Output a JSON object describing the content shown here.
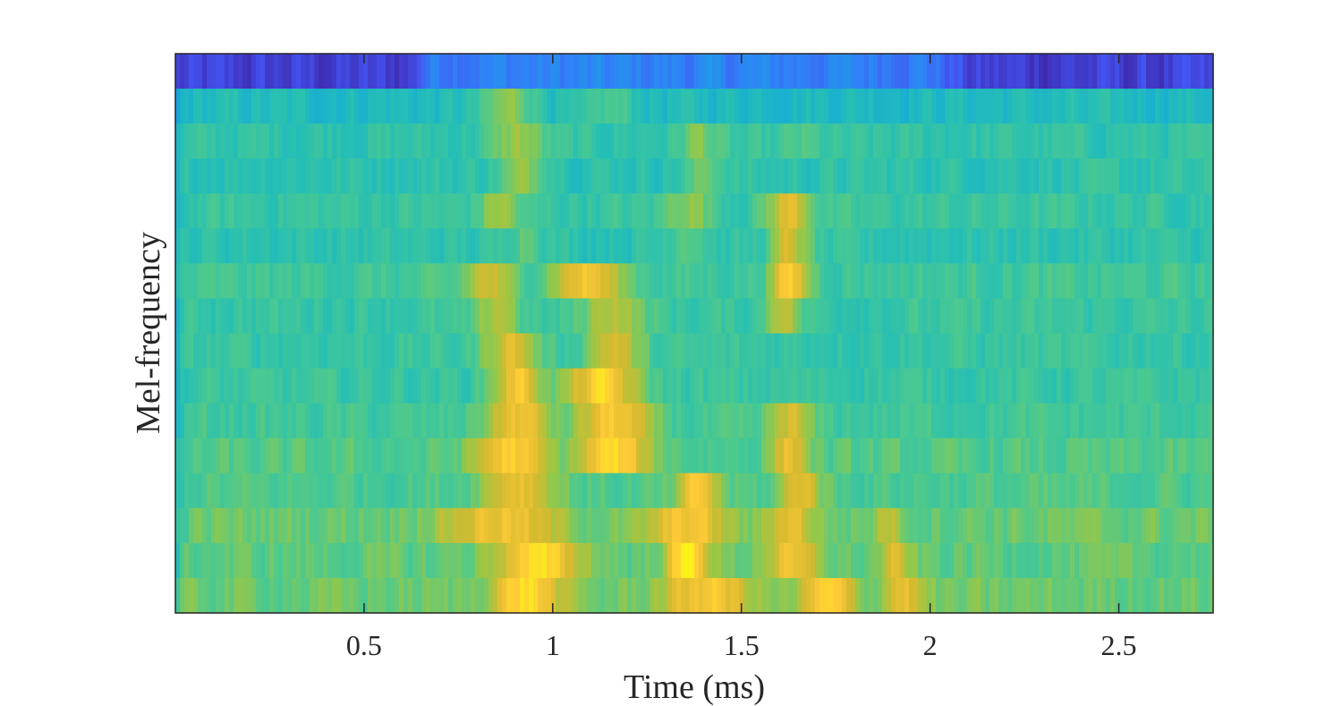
{
  "chart_data": {
    "type": "heatmap",
    "title": "",
    "xlabel": "Time (ms)",
    "ylabel": "Mel-frequency",
    "xlim": [
      0.0,
      2.75
    ],
    "x_ticks": [
      0.5,
      1,
      1.5,
      2,
      2.5
    ],
    "x_tick_labels": [
      "0.5",
      "1",
      "1.5",
      "2",
      "2.5"
    ],
    "y_ticks": [],
    "num_mel_bands": 16,
    "colormap": "parula",
    "color_stops": [
      "#3e26a8",
      "#4353f1",
      "#2f83f7",
      "#14aada",
      "#26bfb5",
      "#4cc98e",
      "#96c848",
      "#d6ba2f",
      "#feca37",
      "#f9f914"
    ],
    "grid": false,
    "colorbar": false,
    "band_intensity_profiles_note": null,
    "bands": [
      {
        "band": 16,
        "base": 0.06,
        "active": 0.22,
        "peaks": []
      },
      {
        "band": 15,
        "base": 0.17,
        "active": 0.42,
        "peaks": [
          [
            0.88,
            0.08,
            0.65
          ],
          [
            1.15,
            0.06,
            0.55
          ]
        ]
      },
      {
        "band": 14,
        "base": 0.26,
        "active": 0.48,
        "peaks": [
          [
            0.9,
            0.07,
            0.68
          ],
          [
            1.38,
            0.05,
            0.65
          ],
          [
            1.65,
            0.05,
            0.55
          ]
        ]
      },
      {
        "band": 13,
        "base": 0.27,
        "active": 0.47,
        "peaks": [
          [
            0.92,
            0.07,
            0.65
          ],
          [
            1.4,
            0.05,
            0.62
          ]
        ]
      },
      {
        "band": 12,
        "base": 0.28,
        "active": 0.5,
        "peaks": [
          [
            0.85,
            0.05,
            0.7
          ],
          [
            1.35,
            0.06,
            0.68
          ],
          [
            1.62,
            0.06,
            0.82
          ]
        ]
      },
      {
        "band": 11,
        "base": 0.28,
        "active": 0.47,
        "peaks": [
          [
            0.92,
            0.05,
            0.62
          ],
          [
            1.35,
            0.05,
            0.62
          ],
          [
            1.62,
            0.05,
            0.78
          ]
        ]
      },
      {
        "band": 10,
        "base": 0.32,
        "active": 0.52,
        "peaks": [
          [
            0.82,
            0.06,
            0.78
          ],
          [
            1.08,
            0.1,
            0.86
          ],
          [
            1.62,
            0.05,
            0.9
          ]
        ]
      },
      {
        "band": 9,
        "base": 0.3,
        "active": 0.5,
        "peaks": [
          [
            0.85,
            0.05,
            0.75
          ],
          [
            1.15,
            0.08,
            0.75
          ],
          [
            1.6,
            0.04,
            0.8
          ]
        ]
      },
      {
        "band": 8,
        "base": 0.3,
        "active": 0.5,
        "peaks": [
          [
            0.88,
            0.07,
            0.82
          ],
          [
            1.15,
            0.07,
            0.8
          ]
        ]
      },
      {
        "band": 7,
        "base": 0.27,
        "active": 0.5,
        "peaks": [
          [
            0.9,
            0.07,
            0.88
          ],
          [
            1.12,
            0.1,
            0.9
          ]
        ]
      },
      {
        "band": 6,
        "base": 0.3,
        "active": 0.52,
        "peaks": [
          [
            0.9,
            0.09,
            0.85
          ],
          [
            1.15,
            0.1,
            0.88
          ],
          [
            1.62,
            0.05,
            0.8
          ]
        ]
      },
      {
        "band": 5,
        "base": 0.3,
        "active": 0.55,
        "peaks": [
          [
            0.88,
            0.1,
            0.9
          ],
          [
            1.15,
            0.1,
            0.92
          ],
          [
            1.62,
            0.05,
            0.85
          ]
        ]
      },
      {
        "band": 4,
        "base": 0.32,
        "active": 0.55,
        "peaks": [
          [
            0.9,
            0.1,
            0.85
          ],
          [
            1.38,
            0.05,
            0.9
          ],
          [
            1.65,
            0.05,
            0.85
          ]
        ]
      },
      {
        "band": 3,
        "base": 0.33,
        "active": 0.6,
        "peaks": [
          [
            0.85,
            0.16,
            0.85
          ],
          [
            1.35,
            0.1,
            0.88
          ],
          [
            1.62,
            0.06,
            0.85
          ],
          [
            1.88,
            0.03,
            0.78
          ]
        ]
      },
      {
        "band": 2,
        "base": 0.34,
        "active": 0.58,
        "peaks": [
          [
            0.95,
            0.12,
            0.92
          ],
          [
            1.35,
            0.06,
            0.98
          ],
          [
            1.62,
            0.08,
            0.82
          ],
          [
            1.9,
            0.04,
            0.78
          ]
        ]
      },
      {
        "band": 1,
        "base": 0.42,
        "active": 0.6,
        "peaks": [
          [
            0.92,
            0.09,
            0.95
          ],
          [
            1.4,
            0.12,
            0.88
          ],
          [
            1.72,
            0.07,
            0.9
          ],
          [
            1.92,
            0.05,
            0.85
          ]
        ]
      }
    ],
    "activity_window": [
      0.66,
      1.98
    ]
  }
}
